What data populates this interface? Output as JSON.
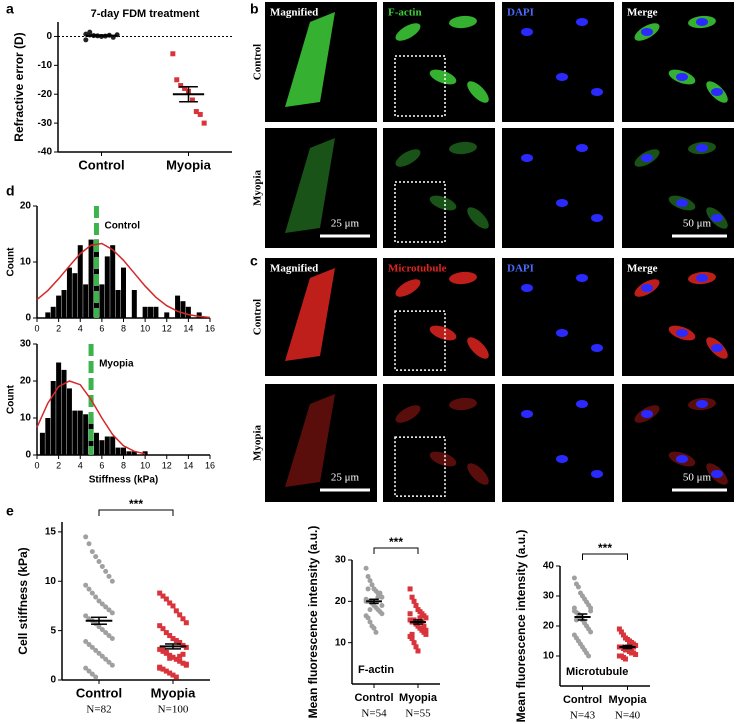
{
  "panels": [
    "a",
    "b",
    "c",
    "d",
    "e"
  ],
  "images": [
    {
      "columns": [
        "Magnified",
        "F-actin",
        "DAPI",
        "Merge"
      ],
      "rows": [
        "Control",
        "Myopia"
      ],
      "scale_bars": [
        "25 μm",
        "50 μm"
      ],
      "stain_color": "#3fcf3a"
    },
    {
      "columns": [
        "Magnified",
        "Microtubule",
        "DAPI",
        "Merge"
      ],
      "rows": [
        "Control",
        "Myopia"
      ],
      "scale_bars": [
        "25 μm",
        "50 μm"
      ],
      "stain_color": "#e0241f"
    }
  ],
  "chart_data": [
    {
      "type": "dot",
      "title": "7-day FDM treatment",
      "ylabel": "Refractive error (D)",
      "ylim": [
        -40,
        5
      ],
      "yticks": [
        -40,
        -30,
        -20,
        -10,
        0
      ],
      "reference_line": 0,
      "groups": [
        {
          "label": "Control",
          "color": "#222222",
          "marker": "circle",
          "values": [
            0.8,
            0.5,
            0.3,
            0.2,
            0,
            0.1,
            0.4,
            -0.3,
            0.6,
            -1.2,
            1.5
          ],
          "mean": 0.3,
          "sem": 0.2
        },
        {
          "label": "Myopia",
          "color": "#d9333b",
          "marker": "square",
          "values": [
            -6,
            -15,
            -17,
            -18,
            -19,
            -22,
            -26,
            -27,
            -30
          ],
          "mean": -20,
          "sem": 2.6
        }
      ]
    },
    {
      "type": "bar",
      "label": "Control",
      "ylabel": "Count",
      "xlim": [
        0,
        16
      ],
      "xticks": [
        0,
        2,
        4,
        6,
        8,
        10,
        12,
        14,
        16
      ],
      "ylim": [
        0,
        20
      ],
      "yticks": [
        0,
        10,
        20
      ],
      "color": "#000000",
      "x": [
        1,
        1.5,
        2,
        2.5,
        3,
        3.5,
        4,
        4.5,
        5,
        5.5,
        6,
        6.5,
        7,
        7.5,
        8,
        9,
        10,
        10.5,
        11,
        12,
        13,
        13.5,
        14,
        15
      ],
      "values": [
        1,
        2,
        4,
        5,
        9,
        8,
        13,
        6,
        14,
        14,
        6,
        11,
        13,
        5,
        9,
        5,
        2,
        2,
        2,
        1,
        4,
        3,
        2,
        1
      ],
      "fit": {
        "color": "#d62728",
        "x": [
          0,
          1,
          2,
          3,
          4,
          5,
          6,
          7,
          8,
          9,
          10,
          11,
          12,
          13,
          14,
          15,
          16
        ],
        "values": [
          3.3,
          4.9,
          7,
          9.3,
          11.5,
          13,
          13.3,
          12.2,
          10.3,
          8,
          5.7,
          3.7,
          2.2,
          1.2,
          0.6,
          0.3,
          0.1
        ]
      },
      "mean_line": {
        "value": 5.5,
        "color": "#3cb44b"
      }
    },
    {
      "type": "bar",
      "label": "Myopia",
      "ylabel": "Count",
      "xlabel": "Stiffness (kPa)",
      "xlim": [
        0,
        16
      ],
      "xticks": [
        0,
        2,
        4,
        6,
        8,
        10,
        12,
        14,
        16
      ],
      "ylim": [
        0,
        30
      ],
      "yticks": [
        0,
        10,
        20,
        30
      ],
      "color": "#000000",
      "x": [
        0.5,
        1,
        1.5,
        2,
        2.5,
        3,
        3.5,
        4,
        4.5,
        5,
        5.5,
        6,
        6.5,
        7,
        7.5,
        8,
        8.5,
        9,
        10
      ],
      "values": [
        6,
        10,
        20,
        25,
        23,
        18,
        12,
        12,
        11,
        10,
        6,
        4,
        5,
        5,
        2,
        2,
        1,
        1,
        1
      ],
      "fit": {
        "color": "#d62728",
        "x": [
          0,
          1,
          2,
          3,
          4,
          5,
          6,
          7,
          8,
          9,
          10
        ],
        "values": [
          7.5,
          14,
          18.5,
          20,
          19,
          15,
          10,
          5.5,
          2.5,
          1,
          0.3
        ]
      },
      "mean_line": {
        "value": 5,
        "color": "#3cb44b"
      }
    },
    {
      "type": "dot",
      "ylabel": "Cell stiffness (kPa)",
      "ylim": [
        0,
        16
      ],
      "yticks": [
        0,
        5,
        10,
        15
      ],
      "significance": "***",
      "groups": [
        {
          "label": "Control",
          "n_label": "N=82",
          "color": "#a0a0a0",
          "marker": "circle",
          "values": [
            14.5,
            13.8,
            13,
            12.5,
            12,
            11.5,
            11,
            10.5,
            10,
            9.6,
            9.2,
            8.8,
            8.4,
            8,
            7.7,
            7.4,
            7.1,
            6.8,
            6.5,
            6.2,
            6,
            5.7,
            5.4,
            5.1,
            4.8,
            4.5,
            4.2,
            3.9,
            3.6,
            3.3,
            3,
            2.7,
            2.4,
            2.1,
            1.8,
            1.5,
            1.2,
            0.9,
            0.6,
            0.3
          ],
          "mean": 6,
          "sem": 0.35
        },
        {
          "label": "Myopia",
          "n_label": "N=100",
          "color": "#d9333b",
          "marker": "square",
          "values": [
            8.8,
            8.5,
            8.2,
            7.8,
            7.5,
            7,
            6.6,
            6.2,
            5.8,
            5.5,
            5.2,
            4.8,
            4.5,
            4.2,
            4,
            3.8,
            3.5,
            3.3,
            3.1,
            2.9,
            2.7,
            2.5,
            2.3,
            2.1,
            1.9,
            1.7,
            1.5,
            1.3,
            1.1,
            0.9,
            0.7,
            0.5,
            0.3,
            2.4,
            2.6,
            1.6,
            1.2,
            3.2,
            2.8,
            2.2
          ],
          "mean": 3.4,
          "sem": 0.25
        }
      ]
    },
    {
      "type": "dot",
      "ylabel": "Mean fluorescence intensity (a.u.)",
      "ylim": [
        0,
        30
      ],
      "yticks": [
        10,
        20,
        30
      ],
      "significance": "***",
      "annotation": "F-actin",
      "groups": [
        {
          "label": "Control",
          "n_label": "N=54",
          "color": "#a0a0a0",
          "marker": "circle",
          "values": [
            28,
            26,
            25,
            24,
            23,
            22.5,
            22,
            21.5,
            21,
            20.5,
            20,
            20,
            19.5,
            19,
            18.5,
            18,
            17.5,
            17,
            16.5,
            16,
            15,
            14,
            13.5,
            12.5,
            21,
            22,
            19,
            20,
            23,
            18
          ],
          "mean": 20,
          "sem": 0.5
        },
        {
          "label": "Myopia",
          "n_label": "N=55",
          "color": "#d9333b",
          "marker": "square",
          "values": [
            23,
            21,
            20,
            19,
            18,
            17.5,
            17,
            16.5,
            16,
            15.5,
            15,
            15,
            14.5,
            14,
            13.5,
            13,
            12.5,
            12,
            11.5,
            11,
            10,
            9,
            8,
            16,
            15,
            14,
            13,
            17,
            12,
            15.5
          ],
          "mean": 15,
          "sem": 0.5
        }
      ]
    },
    {
      "type": "dot",
      "ylabel": "Mean fluorescence intensity (a.u.)",
      "ylim": [
        0,
        40
      ],
      "yticks": [
        10,
        20,
        30,
        40
      ],
      "significance": "***",
      "annotation": "Microtubule",
      "groups": [
        {
          "label": "Control",
          "n_label": "N=43",
          "color": "#a0a0a0",
          "marker": "circle",
          "values": [
            36,
            34,
            33,
            31,
            30,
            29,
            28,
            27,
            26,
            25,
            24.5,
            24,
            23,
            22,
            21,
            20,
            19,
            18,
            17,
            16,
            15,
            14,
            13,
            12,
            11,
            10,
            25,
            26,
            22,
            23
          ],
          "mean": 23,
          "sem": 1
        },
        {
          "label": "Myopia",
          "n_label": "N=40",
          "color": "#d9333b",
          "marker": "square",
          "values": [
            19,
            18,
            17,
            16,
            15.5,
            15,
            14.5,
            14,
            13.5,
            13,
            13,
            12.5,
            12,
            12,
            11.5,
            11,
            11,
            10.5,
            10,
            10,
            9.5,
            9,
            13,
            14,
            12,
            13
          ],
          "mean": 13,
          "sem": 0.5
        }
      ]
    }
  ]
}
